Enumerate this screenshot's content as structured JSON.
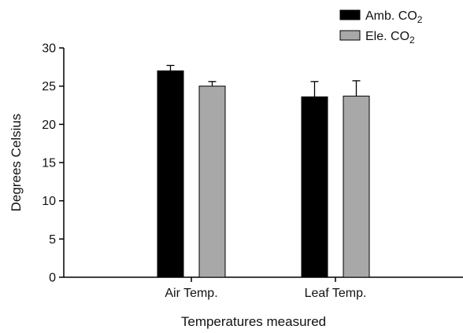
{
  "chart_data": {
    "type": "bar",
    "title": "",
    "xlabel": "Temperatures measured",
    "ylabel": "Degrees Celsius",
    "ylim": [
      0,
      30
    ],
    "yticks": [
      0,
      5,
      10,
      15,
      20,
      25,
      30
    ],
    "categories": [
      "Air Temp.",
      "Leaf Temp."
    ],
    "series": [
      {
        "name": "Amb. CO",
        "name_sub": "2",
        "color": "#000000",
        "values": [
          27.0,
          23.6
        ],
        "errors": [
          0.7,
          2.0
        ]
      },
      {
        "name": "Ele. CO",
        "name_sub": "2",
        "color": "#a8a8a8",
        "values": [
          25.0,
          23.7
        ],
        "errors": [
          0.6,
          2.0
        ]
      }
    ],
    "legend": "top-right",
    "error_bars": "upper"
  }
}
